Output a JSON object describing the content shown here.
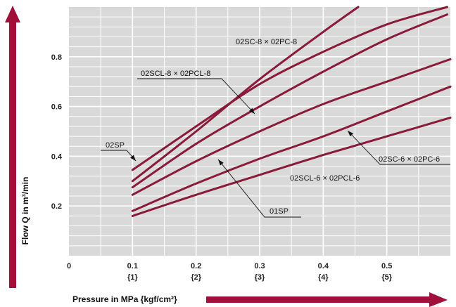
{
  "chart_data": {
    "type": "line",
    "ylabel": "Flow Q in m³/min",
    "xlabel": "Pressure in MPa {kgf/cm²}",
    "xlim": [
      0,
      0.6
    ],
    "ylim": [
      0,
      1.0
    ],
    "grid": true,
    "x_ticks": [
      {
        "value": 0,
        "label": "0",
        "sub": ""
      },
      {
        "value": 0.1,
        "label": "0.1",
        "sub": "{1}"
      },
      {
        "value": 0.2,
        "label": "0.2",
        "sub": "{2}"
      },
      {
        "value": 0.3,
        "label": "0.3",
        "sub": "{3}"
      },
      {
        "value": 0.4,
        "label": "0.4",
        "sub": "{4}"
      },
      {
        "value": 0.5,
        "label": "0.5",
        "sub": "{5}"
      }
    ],
    "y_ticks": [
      {
        "value": 0.2,
        "label": "0.2"
      },
      {
        "value": 0.4,
        "label": "0.4"
      },
      {
        "value": 0.6,
        "label": "0.6"
      },
      {
        "value": 0.8,
        "label": "0.8"
      }
    ],
    "series": [
      {
        "name": "02SC-8 × 02PC-8",
        "x": [
          0.1,
          0.2,
          0.3,
          0.4,
          0.455
        ],
        "y": [
          0.3,
          0.5,
          0.71,
          0.9,
          1.0
        ]
      },
      {
        "name": "02SCL-8 × 02PCL-8",
        "x": [
          0.1,
          0.2,
          0.3,
          0.4,
          0.5,
          0.595
        ],
        "y": [
          0.275,
          0.45,
          0.6,
          0.74,
          0.87,
          0.97
        ]
      },
      {
        "name": "02SP",
        "x": [
          0.1,
          0.2,
          0.3,
          0.4,
          0.5,
          0.595
        ],
        "y": [
          0.345,
          0.52,
          0.69,
          0.82,
          0.93,
          1.0
        ]
      },
      {
        "name": "01SP",
        "x": [
          0.1,
          0.2,
          0.3,
          0.4,
          0.5,
          0.6
        ],
        "y": [
          0.245,
          0.38,
          0.5,
          0.61,
          0.7,
          0.79
        ]
      },
      {
        "name": "02SC-6 × 02PC-6",
        "x": [
          0.1,
          0.2,
          0.3,
          0.4,
          0.5,
          0.6
        ],
        "y": [
          0.18,
          0.29,
          0.39,
          0.48,
          0.58,
          0.68
        ]
      },
      {
        "name": "02SCL-6 × 02PCL-6",
        "x": [
          0.1,
          0.2,
          0.3,
          0.4,
          0.5,
          0.6
        ],
        "y": [
          0.16,
          0.245,
          0.325,
          0.405,
          0.48,
          0.555
        ]
      }
    ],
    "annotations": [
      {
        "text": "02SC-8 × 02PC-8",
        "series": "02SC-8 × 02PC-8"
      },
      {
        "text": "02SCL-8 × 02PCL-8",
        "series": "02SCL-8 × 02PCL-8"
      },
      {
        "text": "02SP",
        "series": "02SP"
      },
      {
        "text": "01SP",
        "series": "01SP"
      },
      {
        "text": "02SC-6 × 02PC-6",
        "series": "02SC-6 × 02PC-6"
      },
      {
        "text": "02SCL-6 × 02PCL-6",
        "series": "02SCL-6 × 02PCL-6"
      }
    ],
    "colors": {
      "curve": "#8b1a3a",
      "grid_bg": "#d9d9d9",
      "grid_line": "#ffffff",
      "arrow": "#a0103a"
    }
  }
}
